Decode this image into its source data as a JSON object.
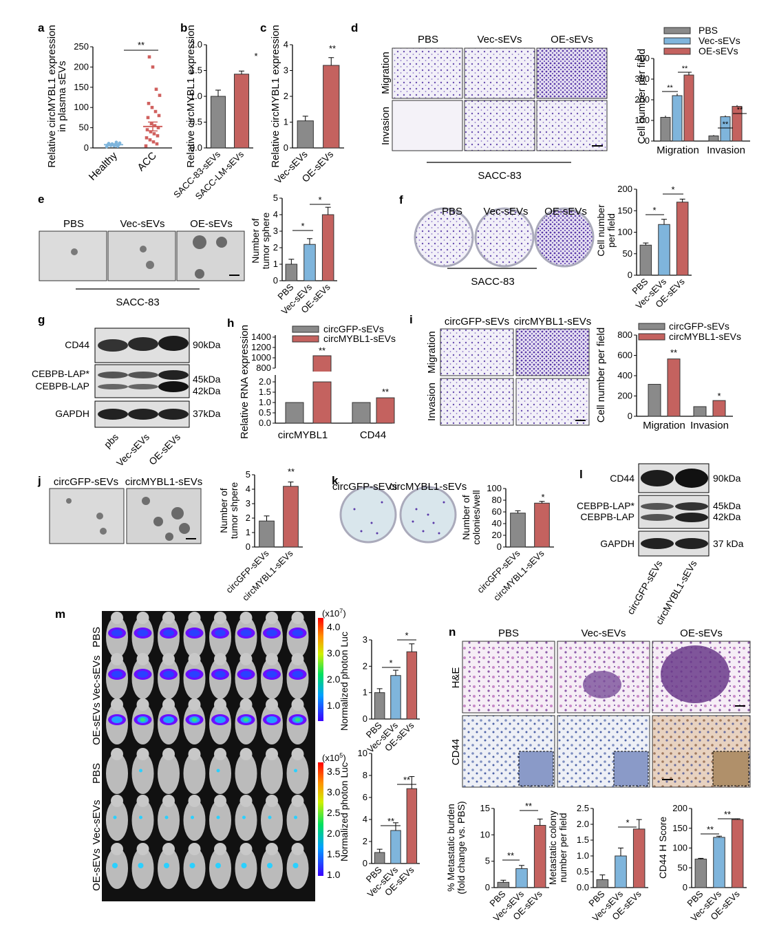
{
  "colors": {
    "gray": "#8a8a8a",
    "blue": "#7fb5dc",
    "red": "#c4625f",
    "scatter_blue": "#7fb5dc",
    "scatter_red": "#d0605e"
  },
  "panels": {
    "a": {
      "letter": "a",
      "ylabel": [
        "Relative circMYBL1 expression",
        "in plasma sEVs"
      ],
      "sig": "**"
    },
    "b": {
      "letter": "b",
      "ylabel": "Relative circMYBL1 expression",
      "sig": "*"
    },
    "c": {
      "letter": "c",
      "ylabel": "Relative circMYBL1 expression",
      "sig": "**"
    },
    "d": {
      "letter": "d",
      "col_headers": [
        "PBS",
        "Vec-sEVs",
        "OE-sEVs"
      ],
      "row_labels": [
        "Migration",
        "Invasion"
      ],
      "cell_line": "SACC-83",
      "ylabel": "Cell number per field",
      "legend": [
        "PBS",
        "Vec-sEVs",
        "OE-sEVs"
      ]
    },
    "e": {
      "letter": "e",
      "col_headers": [
        "PBS",
        "Vec-sEVs",
        "OE-sEVs"
      ],
      "cell_line": "SACC-83",
      "ylabel": [
        "Number of",
        "tumor sphere"
      ]
    },
    "f": {
      "letter": "f",
      "col_headers": [
        "PBS",
        "Vec-sEVs",
        "OE-sEVs"
      ],
      "cell_line": "SACC-83",
      "ylabel": [
        "Cell number",
        "per field"
      ]
    },
    "g": {
      "letter": "g",
      "bands": [
        "CD44",
        "CEBPB-LAP*",
        "CEBPB-LAP",
        "GAPDH"
      ],
      "sizes": [
        "90kDa",
        "45kDa",
        "42kDa",
        "37kDa"
      ],
      "lanes": [
        "pbs",
        "Vec-sEVs",
        "OE-sEVs"
      ]
    },
    "h": {
      "letter": "h",
      "ylabel": "Relative RNA expression",
      "legend": [
        "circGFP-sEVs",
        "circMYBL1-sEVs"
      ],
      "groups": [
        "circMYBL1",
        "CD44"
      ]
    },
    "i": {
      "letter": "i",
      "col_headers": [
        "circGFP-sEVs",
        "circMYBL1-sEVs"
      ],
      "row_labels": [
        "Migration",
        "Invasion"
      ],
      "ylabel": "Cell number per field",
      "legend": [
        "circGFP-sEVs",
        "circMYBL1-sEVs"
      ]
    },
    "j": {
      "letter": "j",
      "col_headers": [
        "circGFP-sEVs",
        "circMYBL1-sEVs"
      ],
      "ylabel": [
        "Number of",
        "tumor shpere"
      ]
    },
    "k": {
      "letter": "k",
      "col_headers": [
        "circGFP-sEVs",
        "circMYBL1-sEVs"
      ],
      "ylabel": [
        "Number of",
        "colonies/well"
      ]
    },
    "l": {
      "letter": "l",
      "bands": [
        "CD44",
        "CEBPB-LAP*",
        "CEBPB-LAP",
        "GAPDH"
      ],
      "sizes": [
        "90kDa",
        "45kDa",
        "42kDa",
        "37 kDa"
      ],
      "lanes": [
        "circGFP-sEVs",
        "circMYBL1-sEVs"
      ]
    },
    "m": {
      "letter": "m",
      "row_labels": [
        "PBS",
        "Vec-sEVs",
        "OE-sEVs",
        "PBS",
        "Vec-sEVs",
        "OE-sEVs"
      ],
      "scale1_exp": "(x10",
      "scale1_sup": "7",
      "scale1_close": ")",
      "scale1_ticks": [
        "4.0",
        "3.0",
        "2.0",
        "1.0"
      ],
      "scale2_exp": "(x10",
      "scale2_sup": "5",
      "scale2_close": ")",
      "scale2_ticks": [
        "3.5",
        "3.0",
        "2.5",
        "2.0",
        "1.5",
        "1.0"
      ],
      "ylabel": "Normalized photon Luc"
    },
    "n": {
      "letter": "n",
      "col_headers": [
        "PBS",
        "Vec-sEVs",
        "OE-sEVs"
      ],
      "row_labels": [
        "H&E",
        "CD44"
      ],
      "ylabel1": [
        "% Metastatic burden",
        "(fold change vs. PBS)"
      ],
      "ylabel2": [
        "Metastatic colony",
        "number per field"
      ],
      "ylabel3": "CD44 H Score"
    }
  },
  "chart_data": [
    {
      "id": "a",
      "type": "scatter",
      "categories": [
        "Healthy",
        "ACC"
      ],
      "means": [
        8,
        53
      ],
      "sem": [
        2,
        11
      ],
      "ylim": [
        0,
        250
      ],
      "yticks": [
        0,
        50,
        100,
        150,
        200,
        250
      ],
      "points": {
        "Healthy": [
          3,
          4,
          5,
          6,
          6,
          7,
          7,
          8,
          8,
          9,
          9,
          10,
          11,
          12,
          14
        ],
        "ACC": [
          5,
          10,
          15,
          20,
          25,
          30,
          35,
          40,
          45,
          50,
          55,
          60,
          75,
          80,
          90,
          100,
          110,
          130,
          145,
          200,
          225
        ]
      }
    },
    {
      "id": "b",
      "type": "bar",
      "categories": [
        "SACC-83-sEVs",
        "SACC-LM-sEVs"
      ],
      "values": [
        1.0,
        1.43
      ],
      "errors": [
        0.12,
        0.06
      ],
      "ylim": [
        0,
        2.0
      ],
      "yticks": [
        0.0,
        0.5,
        1.0,
        1.5,
        2.0
      ],
      "sig": "*"
    },
    {
      "id": "c",
      "type": "bar",
      "categories": [
        "Vec-sEVs",
        "OE-sEVs"
      ],
      "values": [
        1.05,
        3.2
      ],
      "errors": [
        0.18,
        0.3
      ],
      "ylim": [
        0,
        4
      ],
      "yticks": [
        0,
        1,
        2,
        3,
        4
      ],
      "sig": "**"
    },
    {
      "id": "d",
      "type": "bar",
      "groups": [
        "Migration",
        "Invasion"
      ],
      "series": [
        {
          "name": "PBS",
          "values": [
            115,
            25
          ]
        },
        {
          "name": "Vec-sEVs",
          "values": [
            220,
            118
          ]
        },
        {
          "name": "OE-sEVs",
          "values": [
            320,
            168
          ]
        }
      ],
      "errors": [
        [
          8,
          10,
          12
        ],
        [
          4,
          6,
          6
        ]
      ],
      "ylim": [
        0,
        400
      ],
      "yticks": [
        0,
        100,
        200,
        300,
        400
      ]
    },
    {
      "id": "e",
      "type": "bar",
      "categories": [
        "PBS",
        "Vec-sEVs",
        "OE-sEVs"
      ],
      "values": [
        1.0,
        2.2,
        4.0
      ],
      "errors": [
        0.3,
        0.35,
        0.45
      ],
      "ylim": [
        0,
        5
      ],
      "yticks": [
        0,
        1,
        2,
        3,
        4,
        5
      ]
    },
    {
      "id": "f",
      "type": "bar",
      "categories": [
        "PBS",
        "Vec-sEVs",
        "OE-sEVs"
      ],
      "values": [
        70,
        118,
        170
      ],
      "errors": [
        5,
        12,
        7
      ],
      "ylim": [
        0,
        200
      ],
      "yticks": [
        0,
        50,
        100,
        150,
        200
      ]
    },
    {
      "id": "h",
      "type": "bar",
      "groups": [
        "circMYBL1",
        "CD44"
      ],
      "series": [
        {
          "name": "circGFP-sEVs",
          "values": [
            1.0,
            1.0
          ]
        },
        {
          "name": "circMYBL1-sEVs",
          "values": [
            1040,
            1.23
          ]
        }
      ],
      "ylim": [
        0,
        1400
      ],
      "yticks": [
        0.0,
        0.5,
        1.0,
        1.5,
        2.0,
        800,
        1000,
        1200,
        1400
      ]
    },
    {
      "id": "i",
      "type": "bar",
      "groups": [
        "Migration",
        "Invasion"
      ],
      "series": [
        {
          "name": "circGFP-sEVs",
          "values": [
            315,
            95
          ]
        },
        {
          "name": "circMYBL1-sEVs",
          "values": [
            565,
            155
          ]
        }
      ],
      "ylim": [
        0,
        800
      ],
      "yticks": [
        0,
        200,
        400,
        600,
        800
      ]
    },
    {
      "id": "j",
      "type": "bar",
      "categories": [
        "circGFP-sEVs",
        "circMYBL1-sEVs"
      ],
      "values": [
        1.8,
        4.2
      ],
      "errors": [
        0.35,
        0.3
      ],
      "ylim": [
        0,
        5
      ],
      "yticks": [
        0,
        1,
        2,
        3,
        4,
        5
      ]
    },
    {
      "id": "k",
      "type": "bar",
      "categories": [
        "circGFP-sEVs",
        "circMYBL1-sEVs"
      ],
      "values": [
        58,
        75
      ],
      "errors": [
        4,
        3
      ],
      "ylim": [
        0,
        100
      ],
      "yticks": [
        0,
        20,
        40,
        60,
        80,
        100
      ]
    },
    {
      "id": "m1",
      "type": "bar",
      "categories": [
        "PBS",
        "Vec-sEVs",
        "OE-sEVs"
      ],
      "values": [
        1.0,
        1.65,
        2.55
      ],
      "errors": [
        0.15,
        0.2,
        0.3
      ],
      "ylim": [
        0,
        3
      ],
      "yticks": [
        0,
        1,
        2,
        3
      ]
    },
    {
      "id": "m2",
      "type": "bar",
      "categories": [
        "PBS",
        "Vec-sEVs",
        "OE-sEVs"
      ],
      "values": [
        1.0,
        3.0,
        6.8
      ],
      "errors": [
        0.3,
        0.7,
        1.1
      ],
      "ylim": [
        0,
        10
      ],
      "yticks": [
        0,
        2,
        4,
        6,
        8,
        10
      ]
    },
    {
      "id": "n1",
      "type": "bar",
      "categories": [
        "PBS",
        "Vec-sEVs",
        "OE-sEVs"
      ],
      "values": [
        1.0,
        3.6,
        11.8
      ],
      "errors": [
        0.4,
        0.6,
        1.2
      ],
      "ylim": [
        0,
        15
      ],
      "yticks": [
        0,
        5,
        10,
        15
      ]
    },
    {
      "id": "n2",
      "type": "bar",
      "categories": [
        "PBS",
        "Vec-sEVs",
        "OE-sEVs"
      ],
      "values": [
        0.25,
        1.0,
        1.85
      ],
      "errors": [
        0.15,
        0.25,
        0.3
      ],
      "ylim": [
        0,
        2.5
      ],
      "yticks": [
        0.0,
        0.5,
        1.0,
        1.5,
        2.0,
        2.5
      ]
    },
    {
      "id": "n3",
      "type": "bar",
      "categories": [
        "PBS",
        "Vec-sEVs",
        "OE-sEVs"
      ],
      "values": [
        72,
        127,
        172
      ],
      "errors": [
        2,
        3,
        2
      ],
      "ylim": [
        0,
        200
      ],
      "yticks": [
        0,
        50,
        100,
        150,
        200
      ]
    }
  ]
}
